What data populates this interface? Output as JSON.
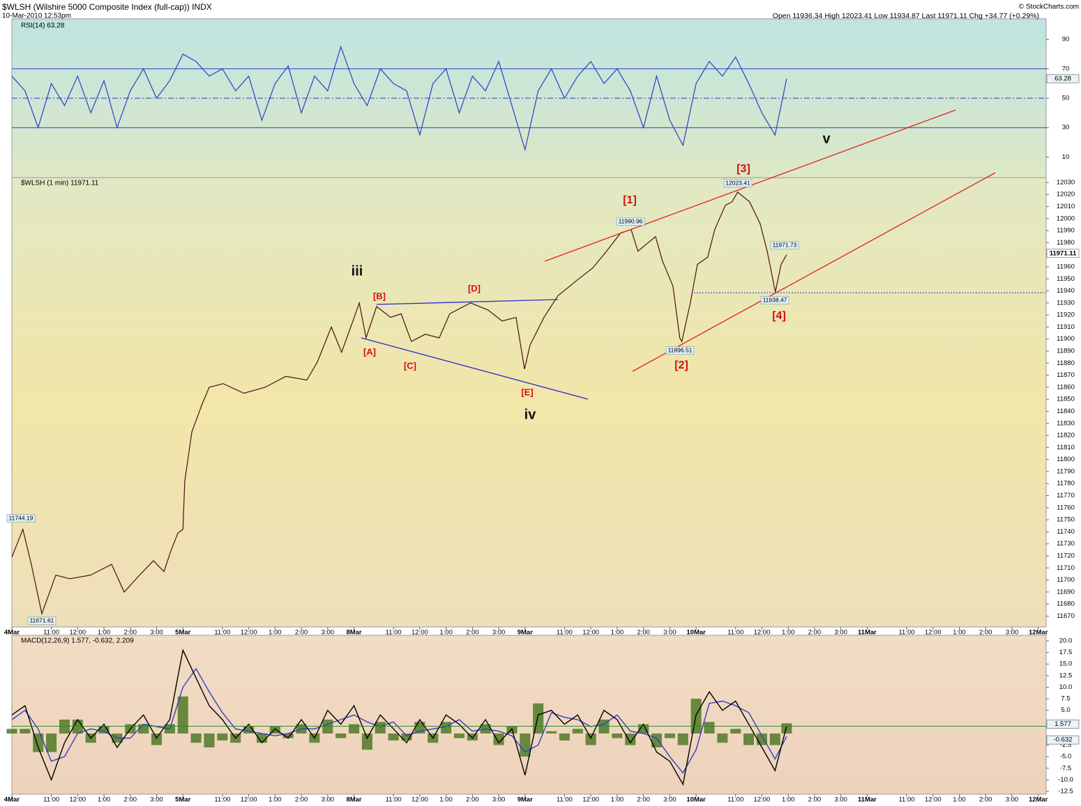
{
  "header": {
    "title": "$WLSH (Wilshire 5000 Composite Index (full-cap)) INDX",
    "date": "10-Mar-2010 12:53pm",
    "quote": "Open 11936.34 High 12023.41 Low 11934.87 Last 11971.11 Chg +34.77 (+0.29%)",
    "credit": "© StockCharts.com"
  },
  "chart_data": [
    {
      "type": "line",
      "title": "RSI(14) 63.28",
      "color": "#2b3fc8",
      "ylim": [
        -4,
        104
      ],
      "yticks": [
        10,
        30,
        50,
        70,
        90
      ],
      "reference_lines": [
        70,
        50,
        30
      ],
      "x": [
        0,
        0.5,
        1,
        1.5,
        2,
        2.5,
        3,
        3.5,
        4,
        4.5,
        5,
        5.5,
        6,
        6.5,
        7,
        7.5,
        8,
        8.5,
        9,
        9.5,
        10,
        10.5,
        11,
        11.5,
        12,
        12.5,
        13,
        13.5,
        14,
        14.5,
        15,
        15.5,
        16,
        16.5,
        17,
        17.5,
        18,
        18.5,
        19,
        19.5,
        20,
        20.5,
        21,
        21.5,
        22,
        22.5,
        23,
        23.5,
        24,
        24.5,
        25,
        25.5,
        26,
        26.5,
        27,
        27.5,
        28,
        28.5,
        29,
        29.44
      ],
      "values": [
        65,
        55,
        30,
        60,
        45,
        65,
        40,
        62,
        30,
        55,
        70,
        50,
        62,
        80,
        75,
        65,
        70,
        55,
        65,
        35,
        60,
        72,
        40,
        65,
        55,
        85,
        60,
        45,
        70,
        60,
        55,
        25,
        60,
        70,
        40,
        65,
        55,
        75,
        45,
        15,
        55,
        70,
        50,
        65,
        75,
        60,
        70,
        55,
        30,
        65,
        35,
        18,
        60,
        75,
        65,
        78,
        60,
        40,
        25,
        63.28
      ]
    },
    {
      "type": "line",
      "title": "$WLSH (1 min) 11971.11",
      "color": "#4a1010",
      "last": 11971.11,
      "ylim": [
        11661,
        12034
      ],
      "yticks": [
        11670,
        11680,
        11690,
        11700,
        11710,
        11720,
        11730,
        11740,
        11750,
        11760,
        11770,
        11780,
        11790,
        11800,
        11810,
        11820,
        11830,
        11840,
        11850,
        11860,
        11870,
        11880,
        11890,
        11900,
        11910,
        11920,
        11930,
        11940,
        11950,
        11960,
        11970,
        11980,
        11990,
        12000,
        12010,
        12020,
        12030
      ],
      "xlim": [
        0,
        39.3
      ],
      "xticks": [
        {
          "value": 0,
          "label": "4Mar"
        },
        {
          "value": 1.5,
          "label": "11:00"
        },
        {
          "value": 2.5,
          "label": "12:00"
        },
        {
          "value": 3.5,
          "label": "1:00"
        },
        {
          "value": 4.5,
          "label": "2:00"
        },
        {
          "value": 5.5,
          "label": "3:00"
        },
        {
          "value": 6.5,
          "label": "5Mar"
        },
        {
          "value": 8,
          "label": "11:00"
        },
        {
          "value": 9,
          "label": "12:00"
        },
        {
          "value": 10,
          "label": "1:00"
        },
        {
          "value": 11,
          "label": "2:00"
        },
        {
          "value": 12,
          "label": "3:00"
        },
        {
          "value": 13,
          "label": "8Mar"
        },
        {
          "value": 14.5,
          "label": "11:00"
        },
        {
          "value": 15.5,
          "label": "12:00"
        },
        {
          "value": 16.5,
          "label": "1:00"
        },
        {
          "value": 17.5,
          "label": "2:00"
        },
        {
          "value": 18.5,
          "label": "3:00"
        },
        {
          "value": 19.5,
          "label": "9Mar"
        },
        {
          "value": 21,
          "label": "11:00"
        },
        {
          "value": 22,
          "label": "12:00"
        },
        {
          "value": 23,
          "label": "1:00"
        },
        {
          "value": 24,
          "label": "2:00"
        },
        {
          "value": 25,
          "label": "3:00"
        },
        {
          "value": 26,
          "label": "10Mar"
        },
        {
          "value": 27.5,
          "label": "11:00"
        },
        {
          "value": 28.5,
          "label": "12:00"
        },
        {
          "value": 29.5,
          "label": "1:00"
        },
        {
          "value": 30.5,
          "label": "2:00"
        },
        {
          "value": 31.5,
          "label": "3:00"
        },
        {
          "value": 32.5,
          "label": "11Mar"
        },
        {
          "value": 34,
          "label": "11:00"
        },
        {
          "value": 35,
          "label": "12:00"
        },
        {
          "value": 36,
          "label": "1:00"
        },
        {
          "value": 37,
          "label": "2:00"
        },
        {
          "value": 38,
          "label": "3:00"
        },
        {
          "value": 39,
          "label": "12Mar"
        }
      ],
      "x": [
        0,
        0.42,
        0.74,
        1.14,
        1.67,
        2.2,
        2.99,
        3.79,
        4.27,
        4.85,
        5.38,
        5.78,
        6.04,
        6.31,
        6.5,
        6.57,
        6.84,
        7.23,
        7.5,
        8.03,
        8.82,
        9.62,
        10.41,
        11.21,
        11.61,
        12.14,
        12.53,
        13.01,
        13.2,
        13.46,
        13.86,
        14.39,
        14.79,
        15.18,
        15.71,
        16.24,
        16.64,
        17.43,
        18.1,
        18.63,
        19.16,
        19.48,
        19.69,
        20.22,
        20.75,
        21.54,
        22.07,
        22.6,
        23.13,
        23.53,
        23.79,
        24.46,
        24.72,
        25.12,
        25.38,
        25.46,
        25.78,
        26.05,
        26.44,
        26.71,
        27.11,
        27.37,
        27.58,
        28.03,
        28.43,
        28.7,
        28.83,
        29.01,
        29.23,
        29.44
      ],
      "values": [
        11719,
        11742,
        11713,
        11672,
        11704,
        11701,
        11704,
        11713,
        11690,
        11704,
        11716,
        11707,
        11724,
        11739,
        11742,
        11782,
        11823,
        11846,
        11860,
        11863,
        11855,
        11860,
        11869,
        11866,
        11881,
        11910,
        11889,
        11918,
        11930,
        11901,
        11927,
        11918,
        11921,
        11898,
        11904,
        11901,
        11921,
        11930,
        11924,
        11915,
        11918,
        11875,
        11895,
        11918,
        11936,
        11950,
        11959,
        11973,
        11988,
        11991,
        11973,
        11985,
        11965,
        11944,
        11901,
        11898,
        11930,
        11962,
        11968,
        11991,
        12011,
        12014,
        12022,
        12014,
        11996,
        11973,
        11959,
        11939,
        11962,
        11970
      ],
      "price_labels": [
        11744.19,
        11671.61,
        11990.96,
        12023.41,
        11896.51,
        11938.47,
        11971.73
      ],
      "waves": [
        "iii",
        "iv",
        "v",
        "[A]",
        "[B]",
        "[C]",
        "[D]",
        "[E]",
        "[1]",
        "[2]",
        "[3]",
        "[4]"
      ]
    },
    {
      "type": "macd",
      "title": "MACD(12,26,9) 1.577, -0.632, 2.209",
      "ylim": [
        -13.1,
        21.2
      ],
      "yticks": [
        {
          "value": 20,
          "label": "20.0"
        },
        17.5,
        {
          "value": 15,
          "label": "15.0"
        },
        12.5,
        {
          "value": 10,
          "label": "10.0"
        },
        7.5,
        {
          "value": 5,
          "label": "5.0"
        },
        -2.5,
        {
          "value": -5,
          "label": "-5.0"
        },
        -7.5,
        {
          "value": -10,
          "label": "-10.0"
        },
        -12.5
      ],
      "x": [
        0,
        0.5,
        1,
        1.5,
        2,
        2.5,
        3,
        3.5,
        4,
        4.5,
        5,
        5.5,
        6,
        6.5,
        7,
        7.5,
        8,
        8.5,
        9,
        9.5,
        10,
        10.5,
        11,
        11.5,
        12,
        12.5,
        13,
        13.5,
        14,
        14.5,
        15,
        15.5,
        16,
        16.5,
        17,
        17.5,
        18,
        18.5,
        19,
        19.5,
        20,
        20.5,
        21,
        21.5,
        22,
        22.5,
        23,
        23.5,
        24,
        24.5,
        25,
        25.5,
        26,
        26.5,
        27,
        27.5,
        28,
        28.5,
        29,
        29.44
      ],
      "series": [
        {
          "name": "MACD",
          "color": "#000000",
          "values": [
            4,
            6,
            -3,
            -10,
            -2,
            3,
            -1,
            2,
            -3,
            1,
            4,
            -1,
            3,
            18,
            12,
            6,
            3,
            -1,
            2,
            -2,
            1,
            -1,
            3,
            -1,
            5,
            2,
            6,
            -1,
            4,
            1,
            -2,
            3,
            -1,
            4,
            2,
            -1,
            3,
            -2,
            1,
            -9,
            4,
            5,
            2,
            4,
            -1,
            5,
            3,
            -2,
            2,
            -4,
            -6,
            -11,
            4,
            9,
            5,
            7,
            2,
            -3,
            -8,
            1.577
          ]
        },
        {
          "name": "Signal",
          "color": "#3040c0",
          "values": [
            3,
            5,
            1,
            -6,
            -5,
            0,
            1,
            0.5,
            -1,
            -1,
            2,
            1.5,
            1,
            10,
            14,
            9,
            4.5,
            1,
            0.5,
            0,
            -0.5,
            0,
            1,
            1,
            2,
            3,
            4,
            2.5,
            1.5,
            2.5,
            -0.5,
            0.5,
            1,
            1.5,
            3,
            0.5,
            1,
            0.5,
            -0.5,
            -4,
            -2.5,
            4.5,
            3.5,
            3,
            1.5,
            2,
            4,
            0.5,
            0,
            -1,
            -5,
            -8.5,
            -3.5,
            6.5,
            7,
            6,
            4.5,
            -0.5,
            -5.5,
            -0.632
          ]
        },
        {
          "name": "Histogram",
          "color": "#4f7a26",
          "values": [
            1,
            1,
            -4,
            -4,
            3,
            3,
            -2,
            1.5,
            -2,
            2,
            2,
            -2.5,
            2,
            8,
            -2,
            -3,
            -1.5,
            -2,
            1.5,
            -2,
            1.5,
            -1,
            2,
            -2,
            3,
            -1,
            2,
            -3.5,
            2.5,
            -1.5,
            -1.5,
            2.5,
            -2,
            2.5,
            -1,
            -1.5,
            2,
            -2.5,
            1.5,
            -5,
            6.5,
            0.5,
            -1.5,
            1,
            -2.5,
            3,
            -1,
            -2.5,
            2,
            -3,
            -1,
            -2.5,
            7.5,
            2.5,
            -2,
            1,
            -2.5,
            -2.5,
            -2.5,
            2.209
          ]
        }
      ]
    }
  ]
}
